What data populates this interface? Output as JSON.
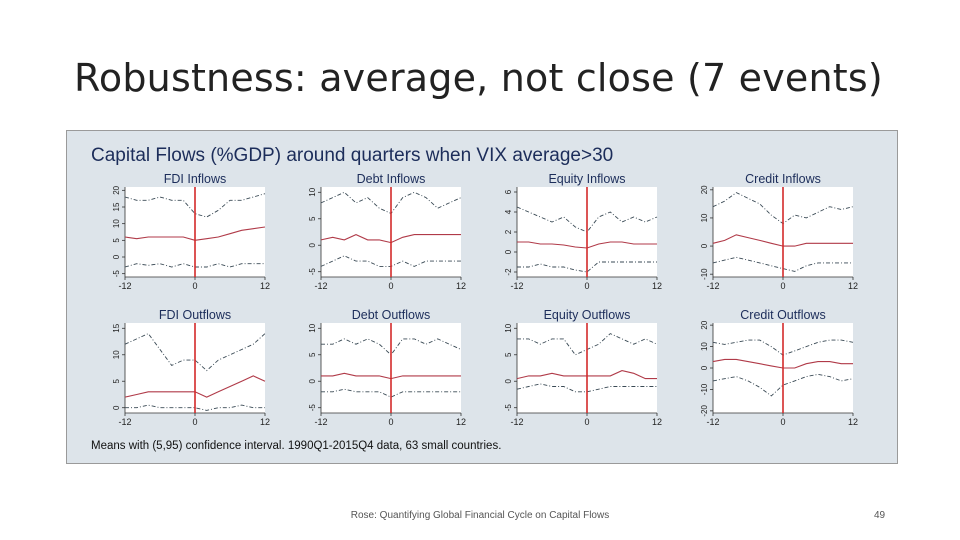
{
  "slide": {
    "title": "Robustness: average, not close (7 events)",
    "footer": "Rose: Quantifying Global Financial Cycle on Capital Flows",
    "page_number": "49"
  },
  "figure": {
    "title": "Capital Flows (%GDP) around quarters when VIX average>30",
    "note": "Means with (5,95) confidence interval. 1990Q1-2015Q4 data, 63 small countries.",
    "colors": {
      "background": "#dde4ea",
      "panel": "#ffffff",
      "mean": "#b03a48",
      "bands": "#3a4a55",
      "event_line": "#d42a2a"
    }
  },
  "chart_data": [
    {
      "type": "line",
      "title": "FDI Inflows",
      "x_ticks": [
        -12,
        0,
        12
      ],
      "y_ticks": [
        -5,
        0,
        5,
        10,
        15,
        20
      ],
      "ylim": [
        -6,
        21
      ],
      "xlim": [
        -12,
        12
      ],
      "event_x": 0,
      "series": [
        {
          "style": "band",
          "x": [
            -12,
            -10,
            -8,
            -6,
            -4,
            -2,
            0,
            2,
            4,
            6,
            8,
            10,
            12
          ],
          "values": [
            18,
            17,
            17,
            18,
            17,
            17,
            13,
            12,
            14,
            17,
            17,
            18,
            19
          ]
        },
        {
          "style": "mean",
          "x": [
            -12,
            -10,
            -8,
            -6,
            -4,
            -2,
            0,
            2,
            4,
            6,
            8,
            10,
            12
          ],
          "values": [
            6,
            5.5,
            6,
            6,
            6,
            6,
            5,
            5.5,
            6,
            7,
            8,
            8.5,
            9
          ]
        },
        {
          "style": "band",
          "x": [
            -12,
            -10,
            -8,
            -6,
            -4,
            -2,
            0,
            2,
            4,
            6,
            8,
            10,
            12
          ],
          "values": [
            -3,
            -2,
            -2.5,
            -2,
            -3,
            -2,
            -3,
            -3,
            -2,
            -3,
            -2,
            -2,
            -2
          ]
        }
      ]
    },
    {
      "type": "line",
      "title": "Debt Inflows",
      "x_ticks": [
        -12,
        0,
        12
      ],
      "y_ticks": [
        -5,
        0,
        5,
        10
      ],
      "ylim": [
        -6,
        11
      ],
      "xlim": [
        -12,
        12
      ],
      "event_x": 0,
      "series": [
        {
          "style": "band",
          "x": [
            -12,
            -10,
            -8,
            -6,
            -4,
            -2,
            0,
            2,
            4,
            6,
            8,
            10,
            12
          ],
          "values": [
            8,
            9,
            10,
            8,
            9,
            7,
            6,
            9,
            10,
            9,
            7,
            8,
            9
          ]
        },
        {
          "style": "mean",
          "x": [
            -12,
            -10,
            -8,
            -6,
            -4,
            -2,
            0,
            2,
            4,
            6,
            8,
            10,
            12
          ],
          "values": [
            1,
            1.5,
            1,
            2,
            1,
            1,
            0.5,
            1.5,
            2,
            2,
            2,
            2,
            2
          ]
        },
        {
          "style": "band",
          "x": [
            -12,
            -10,
            -8,
            -6,
            -4,
            -2,
            0,
            2,
            4,
            6,
            8,
            10,
            12
          ],
          "values": [
            -4,
            -3,
            -2,
            -3,
            -3,
            -4,
            -4,
            -3,
            -4,
            -3,
            -3,
            -3,
            -3
          ]
        }
      ]
    },
    {
      "type": "line",
      "title": "Equity Inflows",
      "x_ticks": [
        -12,
        0,
        12
      ],
      "y_ticks": [
        -2,
        0,
        2,
        4,
        6
      ],
      "ylim": [
        -2.5,
        6.5
      ],
      "xlim": [
        -12,
        12
      ],
      "event_x": 0,
      "series": [
        {
          "style": "band",
          "x": [
            -12,
            -10,
            -8,
            -6,
            -4,
            -2,
            0,
            2,
            4,
            6,
            8,
            10,
            12
          ],
          "values": [
            4.5,
            4,
            3.5,
            3,
            3.5,
            2.5,
            2,
            3.5,
            4,
            3,
            3.5,
            3,
            3.5
          ]
        },
        {
          "style": "mean",
          "x": [
            -12,
            -10,
            -8,
            -6,
            -4,
            -2,
            0,
            2,
            4,
            6,
            8,
            10,
            12
          ],
          "values": [
            1,
            1,
            0.8,
            0.8,
            0.7,
            0.5,
            0.4,
            0.8,
            1,
            1,
            0.8,
            0.8,
            0.8
          ]
        },
        {
          "style": "band",
          "x": [
            -12,
            -10,
            -8,
            -6,
            -4,
            -2,
            0,
            2,
            4,
            6,
            8,
            10,
            12
          ],
          "values": [
            -1.5,
            -1.5,
            -1.2,
            -1.5,
            -1.5,
            -1.8,
            -2,
            -1,
            -1,
            -1,
            -1,
            -1,
            -1
          ]
        }
      ]
    },
    {
      "type": "line",
      "title": "Credit Inflows",
      "x_ticks": [
        -12,
        0,
        12
      ],
      "y_ticks": [
        -10,
        0,
        10,
        20
      ],
      "ylim": [
        -11,
        21
      ],
      "xlim": [
        -12,
        12
      ],
      "event_x": 0,
      "series": [
        {
          "style": "band",
          "x": [
            -12,
            -10,
            -8,
            -6,
            -4,
            -2,
            0,
            2,
            4,
            6,
            8,
            10,
            12
          ],
          "values": [
            14,
            16,
            19,
            17,
            15,
            11,
            8,
            11,
            10,
            12,
            14,
            13,
            14
          ]
        },
        {
          "style": "mean",
          "x": [
            -12,
            -10,
            -8,
            -6,
            -4,
            -2,
            0,
            2,
            4,
            6,
            8,
            10,
            12
          ],
          "values": [
            1,
            2,
            4,
            3,
            2,
            1,
            0,
            0,
            1,
            1,
            1,
            1,
            1
          ]
        },
        {
          "style": "band",
          "x": [
            -12,
            -10,
            -8,
            -6,
            -4,
            -2,
            0,
            2,
            4,
            6,
            8,
            10,
            12
          ],
          "values": [
            -6,
            -5,
            -4,
            -5,
            -6,
            -7,
            -8,
            -9,
            -7,
            -6,
            -6,
            -6,
            -6
          ]
        }
      ]
    },
    {
      "type": "line",
      "title": "FDI Outflows",
      "x_ticks": [
        -12,
        0,
        12
      ],
      "y_ticks": [
        0,
        5,
        10,
        15
      ],
      "ylim": [
        -1,
        16
      ],
      "xlim": [
        -12,
        12
      ],
      "event_x": 0,
      "series": [
        {
          "style": "band",
          "x": [
            -12,
            -10,
            -8,
            -6,
            -4,
            -2,
            0,
            2,
            4,
            6,
            8,
            10,
            12
          ],
          "values": [
            12,
            13,
            14,
            11,
            8,
            9,
            9,
            7,
            9,
            10,
            11,
            12,
            14
          ]
        },
        {
          "style": "mean",
          "x": [
            -12,
            -10,
            -8,
            -6,
            -4,
            -2,
            0,
            2,
            4,
            6,
            8,
            10,
            12
          ],
          "values": [
            2,
            2.5,
            3,
            3,
            3,
            3,
            3,
            2,
            3,
            4,
            5,
            6,
            5
          ]
        },
        {
          "style": "band",
          "x": [
            -12,
            -10,
            -8,
            -6,
            -4,
            -2,
            0,
            2,
            4,
            6,
            8,
            10,
            12
          ],
          "values": [
            0,
            0,
            0.5,
            0,
            0,
            0,
            0,
            -0.5,
            0,
            0,
            0.5,
            0,
            0
          ]
        }
      ]
    },
    {
      "type": "line",
      "title": "Debt Outflows",
      "x_ticks": [
        -12,
        0,
        12
      ],
      "y_ticks": [
        -5,
        0,
        5,
        10
      ],
      "ylim": [
        -6,
        11
      ],
      "xlim": [
        -12,
        12
      ],
      "event_x": 0,
      "series": [
        {
          "style": "band",
          "x": [
            -12,
            -10,
            -8,
            -6,
            -4,
            -2,
            0,
            2,
            4,
            6,
            8,
            10,
            12
          ],
          "values": [
            7,
            7,
            8,
            7,
            8,
            7,
            5,
            8,
            8,
            7,
            8,
            7,
            6
          ]
        },
        {
          "style": "mean",
          "x": [
            -12,
            -10,
            -8,
            -6,
            -4,
            -2,
            0,
            2,
            4,
            6,
            8,
            10,
            12
          ],
          "values": [
            1,
            1,
            1.5,
            1,
            1,
            1,
            0.5,
            1,
            1,
            1,
            1,
            1,
            1
          ]
        },
        {
          "style": "band",
          "x": [
            -12,
            -10,
            -8,
            -6,
            -4,
            -2,
            0,
            2,
            4,
            6,
            8,
            10,
            12
          ],
          "values": [
            -2,
            -2,
            -1.5,
            -2,
            -2,
            -2,
            -3,
            -2,
            -2,
            -2,
            -2,
            -2,
            -2
          ]
        }
      ]
    },
    {
      "type": "line",
      "title": "Equity Outflows",
      "x_ticks": [
        -12,
        0,
        12
      ],
      "y_ticks": [
        -5,
        0,
        5,
        10
      ],
      "ylim": [
        -6,
        11
      ],
      "xlim": [
        -12,
        12
      ],
      "event_x": 0,
      "series": [
        {
          "style": "band",
          "x": [
            -12,
            -10,
            -8,
            -6,
            -4,
            -2,
            0,
            2,
            4,
            6,
            8,
            10,
            12
          ],
          "values": [
            8,
            8,
            7,
            8,
            8,
            5,
            6,
            7,
            9,
            8,
            7,
            8,
            7
          ]
        },
        {
          "style": "mean",
          "x": [
            -12,
            -10,
            -8,
            -6,
            -4,
            -2,
            0,
            2,
            4,
            6,
            8,
            10,
            12
          ],
          "values": [
            0.5,
            1,
            1,
            1.5,
            1,
            1,
            1,
            1,
            1,
            2,
            1.5,
            0.5,
            0.5
          ]
        },
        {
          "style": "band",
          "x": [
            -12,
            -10,
            -8,
            -6,
            -4,
            -2,
            0,
            2,
            4,
            6,
            8,
            10,
            12
          ],
          "values": [
            -1.5,
            -1,
            -0.5,
            -1,
            -1,
            -2,
            -2,
            -1.5,
            -1,
            -1,
            -1,
            -1,
            -1
          ]
        }
      ]
    },
    {
      "type": "line",
      "title": "Credit Outflows",
      "x_ticks": [
        -12,
        0,
        12
      ],
      "y_ticks": [
        -20,
        -10,
        0,
        10,
        20
      ],
      "ylim": [
        -21,
        21
      ],
      "xlim": [
        -12,
        12
      ],
      "event_x": 0,
      "series": [
        {
          "style": "band",
          "x": [
            -12,
            -10,
            -8,
            -6,
            -4,
            -2,
            0,
            2,
            4,
            6,
            8,
            10,
            12
          ],
          "values": [
            12,
            11,
            12,
            13,
            13,
            10,
            6,
            8,
            10,
            12,
            13,
            13,
            12
          ]
        },
        {
          "style": "mean",
          "x": [
            -12,
            -10,
            -8,
            -6,
            -4,
            -2,
            0,
            2,
            4,
            6,
            8,
            10,
            12
          ],
          "values": [
            3,
            4,
            4,
            3,
            2,
            1,
            0,
            0,
            2,
            3,
            3,
            2,
            2
          ]
        },
        {
          "style": "band",
          "x": [
            -12,
            -10,
            -8,
            -6,
            -4,
            -2,
            0,
            2,
            4,
            6,
            8,
            10,
            12
          ],
          "values": [
            -6,
            -5,
            -4,
            -6,
            -9,
            -13,
            -8,
            -6,
            -4,
            -3,
            -4,
            -6,
            -5
          ]
        }
      ]
    }
  ]
}
